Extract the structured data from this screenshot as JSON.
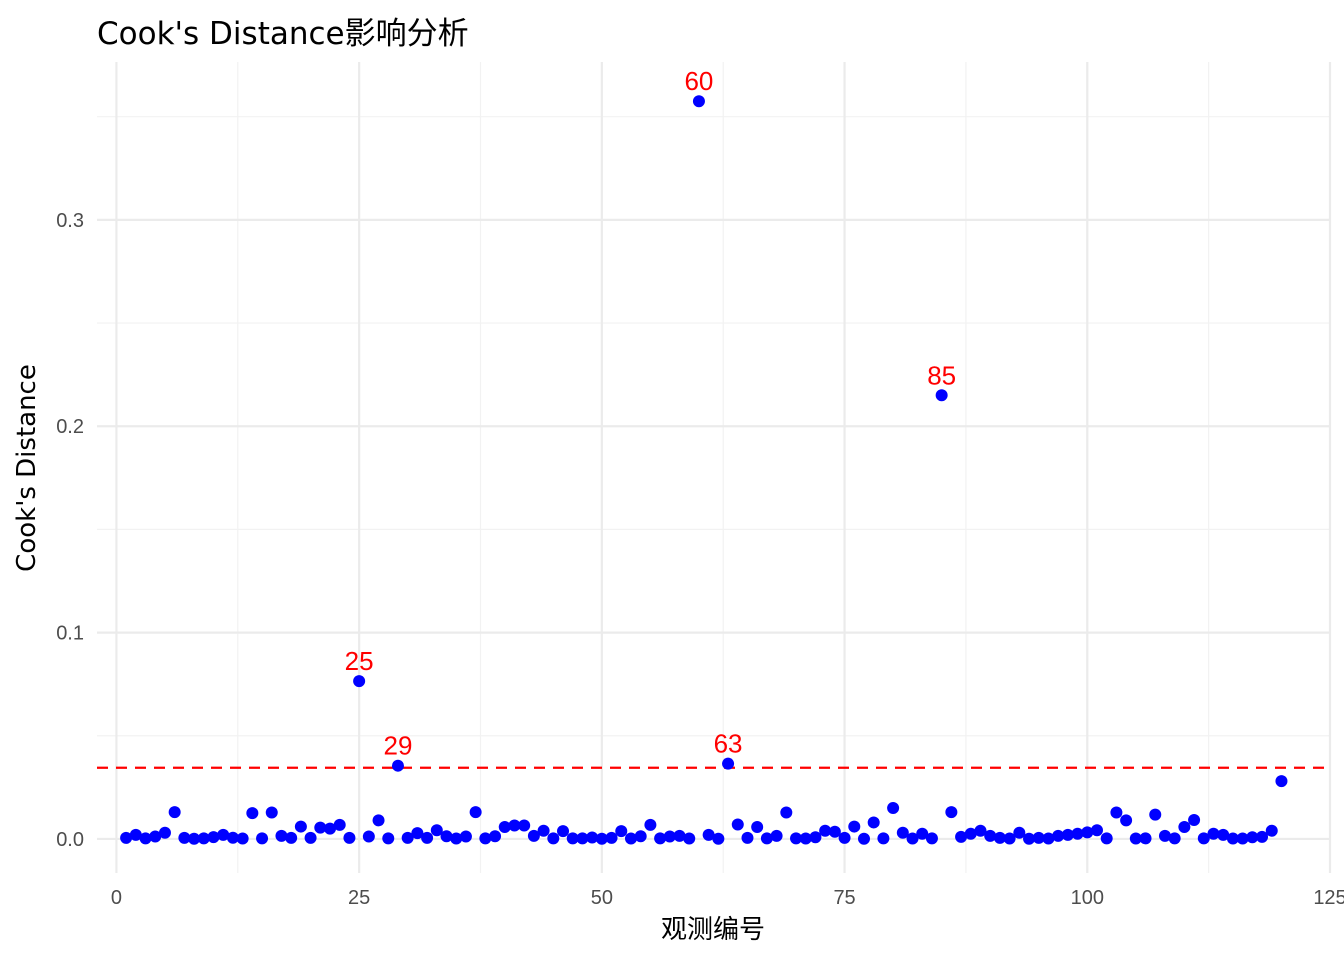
{
  "chart_data": {
    "type": "scatter",
    "title": "Cook's Distance影响分析",
    "xlabel": "观测编号",
    "ylabel": "Cook's Distance",
    "xlim": [
      -2,
      125
    ],
    "ylim": [
      -0.0165,
      0.3765
    ],
    "x_ticks": [
      0,
      25,
      50,
      75,
      100,
      125
    ],
    "x_tick_labels": [
      "0",
      "25",
      "50",
      "75",
      "100",
      "125"
    ],
    "y_ticks": [
      0.0,
      0.1,
      0.2,
      0.3
    ],
    "y_tick_labels": [
      "0.0",
      "0.1",
      "0.2",
      "0.3"
    ],
    "grid": true,
    "threshold": 0.0345,
    "point_color": "#0000ff",
    "threshold_color": "#ff0000",
    "annotation_color": "#ff0000",
    "points": [
      {
        "x": 1,
        "y": 0.0005
      },
      {
        "x": 2,
        "y": 0.002
      },
      {
        "x": 3,
        "y": 0.0003
      },
      {
        "x": 4,
        "y": 0.0012
      },
      {
        "x": 5,
        "y": 0.003
      },
      {
        "x": 6,
        "y": 0.013
      },
      {
        "x": 7,
        "y": 0.0005
      },
      {
        "x": 8,
        "y": 0.0001
      },
      {
        "x": 9,
        "y": 0.0003
      },
      {
        "x": 10,
        "y": 0.0009
      },
      {
        "x": 11,
        "y": 0.002
      },
      {
        "x": 12,
        "y": 0.0006
      },
      {
        "x": 13,
        "y": 0.0002
      },
      {
        "x": 14,
        "y": 0.0125
      },
      {
        "x": 15,
        "y": 0.0003
      },
      {
        "x": 16,
        "y": 0.0128
      },
      {
        "x": 17,
        "y": 0.0015
      },
      {
        "x": 18,
        "y": 0.0005
      },
      {
        "x": 19,
        "y": 0.006
      },
      {
        "x": 20,
        "y": 0.0005
      },
      {
        "x": 21,
        "y": 0.0055
      },
      {
        "x": 22,
        "y": 0.005
      },
      {
        "x": 23,
        "y": 0.0068
      },
      {
        "x": 24,
        "y": 0.0005
      },
      {
        "x": 25,
        "y": 0.0765,
        "label": "25"
      },
      {
        "x": 26,
        "y": 0.0012
      },
      {
        "x": 27,
        "y": 0.009
      },
      {
        "x": 28,
        "y": 0.0003
      },
      {
        "x": 29,
        "y": 0.0355,
        "label": "29"
      },
      {
        "x": 30,
        "y": 0.0005
      },
      {
        "x": 31,
        "y": 0.0028
      },
      {
        "x": 32,
        "y": 0.0005
      },
      {
        "x": 33,
        "y": 0.0042
      },
      {
        "x": 34,
        "y": 0.0013
      },
      {
        "x": 35,
        "y": 0.0002
      },
      {
        "x": 36,
        "y": 0.0012
      },
      {
        "x": 37,
        "y": 0.013
      },
      {
        "x": 38,
        "y": 0.0003
      },
      {
        "x": 39,
        "y": 0.0013
      },
      {
        "x": 40,
        "y": 0.0058
      },
      {
        "x": 41,
        "y": 0.0065
      },
      {
        "x": 42,
        "y": 0.0065
      },
      {
        "x": 43,
        "y": 0.0015
      },
      {
        "x": 44,
        "y": 0.004
      },
      {
        "x": 45,
        "y": 0.0003
      },
      {
        "x": 46,
        "y": 0.0038
      },
      {
        "x": 47,
        "y": 0.0003
      },
      {
        "x": 48,
        "y": 0.0003
      },
      {
        "x": 49,
        "y": 0.0007
      },
      {
        "x": 50,
        "y": 0.0001
      },
      {
        "x": 51,
        "y": 0.0005
      },
      {
        "x": 52,
        "y": 0.0038
      },
      {
        "x": 53,
        "y": 0.0002
      },
      {
        "x": 54,
        "y": 0.0013
      },
      {
        "x": 55,
        "y": 0.0068
      },
      {
        "x": 56,
        "y": 0.0003
      },
      {
        "x": 57,
        "y": 0.0012
      },
      {
        "x": 58,
        "y": 0.0015
      },
      {
        "x": 59,
        "y": 0.0002
      },
      {
        "x": 60,
        "y": 0.3575,
        "label": "60"
      },
      {
        "x": 61,
        "y": 0.002
      },
      {
        "x": 62,
        "y": 0.0001
      },
      {
        "x": 63,
        "y": 0.0365,
        "label": "63"
      },
      {
        "x": 64,
        "y": 0.007
      },
      {
        "x": 65,
        "y": 0.0005
      },
      {
        "x": 66,
        "y": 0.0058
      },
      {
        "x": 67,
        "y": 0.0003
      },
      {
        "x": 68,
        "y": 0.0015
      },
      {
        "x": 69,
        "y": 0.0128
      },
      {
        "x": 70,
        "y": 0.0003
      },
      {
        "x": 71,
        "y": 0.0002
      },
      {
        "x": 72,
        "y": 0.0008
      },
      {
        "x": 73,
        "y": 0.004
      },
      {
        "x": 74,
        "y": 0.0035
      },
      {
        "x": 75,
        "y": 0.0005
      },
      {
        "x": 76,
        "y": 0.006
      },
      {
        "x": 77,
        "y": 0.0001
      },
      {
        "x": 78,
        "y": 0.008
      },
      {
        "x": 79,
        "y": 0.0003
      },
      {
        "x": 80,
        "y": 0.015
      },
      {
        "x": 81,
        "y": 0.003
      },
      {
        "x": 82,
        "y": 0.0002
      },
      {
        "x": 83,
        "y": 0.0025
      },
      {
        "x": 84,
        "y": 0.0003
      },
      {
        "x": 85,
        "y": 0.215,
        "label": "85"
      },
      {
        "x": 86,
        "y": 0.013
      },
      {
        "x": 87,
        "y": 0.001
      },
      {
        "x": 88,
        "y": 0.0025
      },
      {
        "x": 89,
        "y": 0.004
      },
      {
        "x": 90,
        "y": 0.0015
      },
      {
        "x": 91,
        "y": 0.0005
      },
      {
        "x": 92,
        "y": 0.0002
      },
      {
        "x": 93,
        "y": 0.003
      },
      {
        "x": 94,
        "y": 0.0001
      },
      {
        "x": 95,
        "y": 0.0005
      },
      {
        "x": 96,
        "y": 0.0002
      },
      {
        "x": 97,
        "y": 0.0015
      },
      {
        "x": 98,
        "y": 0.002
      },
      {
        "x": 99,
        "y": 0.0025
      },
      {
        "x": 100,
        "y": 0.0032
      },
      {
        "x": 101,
        "y": 0.0042
      },
      {
        "x": 102,
        "y": 0.0003
      },
      {
        "x": 103,
        "y": 0.0128
      },
      {
        "x": 104,
        "y": 0.009
      },
      {
        "x": 105,
        "y": 0.0002
      },
      {
        "x": 106,
        "y": 0.0003
      },
      {
        "x": 107,
        "y": 0.0118
      },
      {
        "x": 108,
        "y": 0.0015
      },
      {
        "x": 109,
        "y": 0.0003
      },
      {
        "x": 110,
        "y": 0.0058
      },
      {
        "x": 111,
        "y": 0.0092
      },
      {
        "x": 112,
        "y": 0.0003
      },
      {
        "x": 113,
        "y": 0.0025
      },
      {
        "x": 114,
        "y": 0.002
      },
      {
        "x": 115,
        "y": 0.0002
      },
      {
        "x": 116,
        "y": 0.0002
      },
      {
        "x": 117,
        "y": 0.0008
      },
      {
        "x": 118,
        "y": 0.001
      },
      {
        "x": 119,
        "y": 0.004
      },
      {
        "x": 120,
        "y": 0.028
      }
    ]
  }
}
